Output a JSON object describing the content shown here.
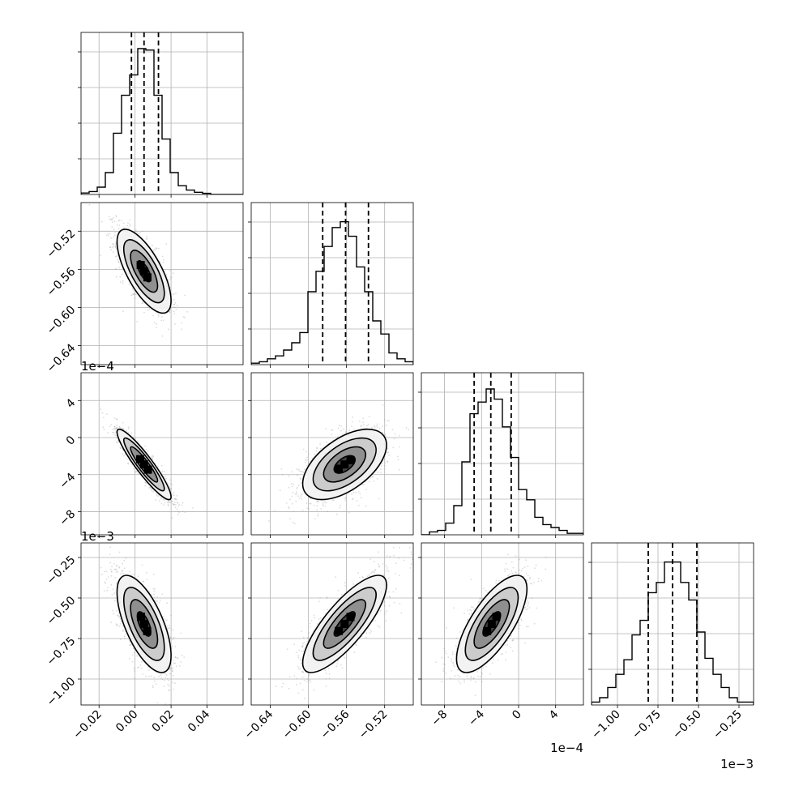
{
  "chart_data": {
    "type": "corner",
    "ndim": 4,
    "parameters": [
      {
        "range": [
          -0.03,
          0.06
        ],
        "ticks": [
          -0.02,
          0.0,
          0.02,
          0.04
        ],
        "tick_labels": [
          "−0.02",
          "0.00",
          "0.02",
          "0.04"
        ],
        "offset": "",
        "mean": 0.005,
        "sigma": 0.0075,
        "quantiles": [
          -0.002,
          0.005,
          0.013
        ],
        "hist": [
          0.01,
          0.02,
          0.05,
          0.15,
          0.42,
          0.68,
          0.82,
          1.0,
          0.99,
          0.68,
          0.38,
          0.15,
          0.06,
          0.03,
          0.015,
          0.008,
          0,
          0,
          0,
          0
        ]
      },
      {
        "range": [
          -0.66,
          -0.49
        ],
        "ticks": [
          -0.64,
          -0.6,
          -0.56,
          -0.52
        ],
        "tick_labels": [
          "−0.64",
          "−0.60",
          "−0.56",
          "−0.52"
        ],
        "offset": "",
        "mean": -0.562,
        "sigma": 0.022,
        "quantiles": [
          -0.585,
          -0.561,
          -0.537
        ],
        "hist": [
          0.01,
          0.02,
          0.04,
          0.06,
          0.1,
          0.15,
          0.22,
          0.5,
          0.64,
          0.81,
          0.94,
          0.98,
          0.88,
          0.67,
          0.5,
          0.3,
          0.21,
          0.08,
          0.04,
          0.02
        ]
      },
      {
        "range": [
          -10.5,
          7.0
        ],
        "ticks": [
          -8,
          -4,
          0,
          4
        ],
        "tick_labels": [
          "−8",
          "−4",
          "0",
          "4"
        ],
        "offset": "1e−4",
        "mean": -2.9,
        "sigma": 1.9,
        "quantiles": [
          -4.8,
          -3.0,
          -0.8
        ],
        "hist": [
          0,
          0.02,
          0.03,
          0.08,
          0.2,
          0.5,
          0.83,
          0.91,
          1.0,
          0.93,
          0.74,
          0.53,
          0.31,
          0.24,
          0.12,
          0.07,
          0.05,
          0.03,
          0.01,
          0.01
        ]
      },
      {
        "range": [
          -1.16,
          -0.16
        ],
        "ticks": [
          -1.0,
          -0.75,
          -0.5,
          -0.25
        ],
        "tick_labels": [
          "−1.00",
          "−0.75",
          "−0.50",
          "−0.25"
        ],
        "offset": "1e−3",
        "mean": -0.66,
        "sigma": 0.15,
        "quantiles": [
          -0.81,
          -0.66,
          -0.51
        ],
        "hist": [
          0.02,
          0.05,
          0.12,
          0.21,
          0.31,
          0.48,
          0.58,
          0.77,
          0.84,
          0.98,
          0.98,
          0.84,
          0.72,
          0.5,
          0.32,
          0.21,
          0.12,
          0.05,
          0.02,
          0.02
        ]
      }
    ],
    "correlations": [
      [
        1.0,
        -0.7,
        -0.92,
        -0.65
      ],
      [
        -0.7,
        1.0,
        0.55,
        0.8
      ],
      [
        -0.92,
        0.55,
        1.0,
        0.72
      ],
      [
        -0.65,
        0.8,
        0.72,
        1.0
      ]
    ],
    "contour_levels_sigma": [
      0.5,
      1.0,
      1.5,
      2.0
    ],
    "grid": true
  }
}
